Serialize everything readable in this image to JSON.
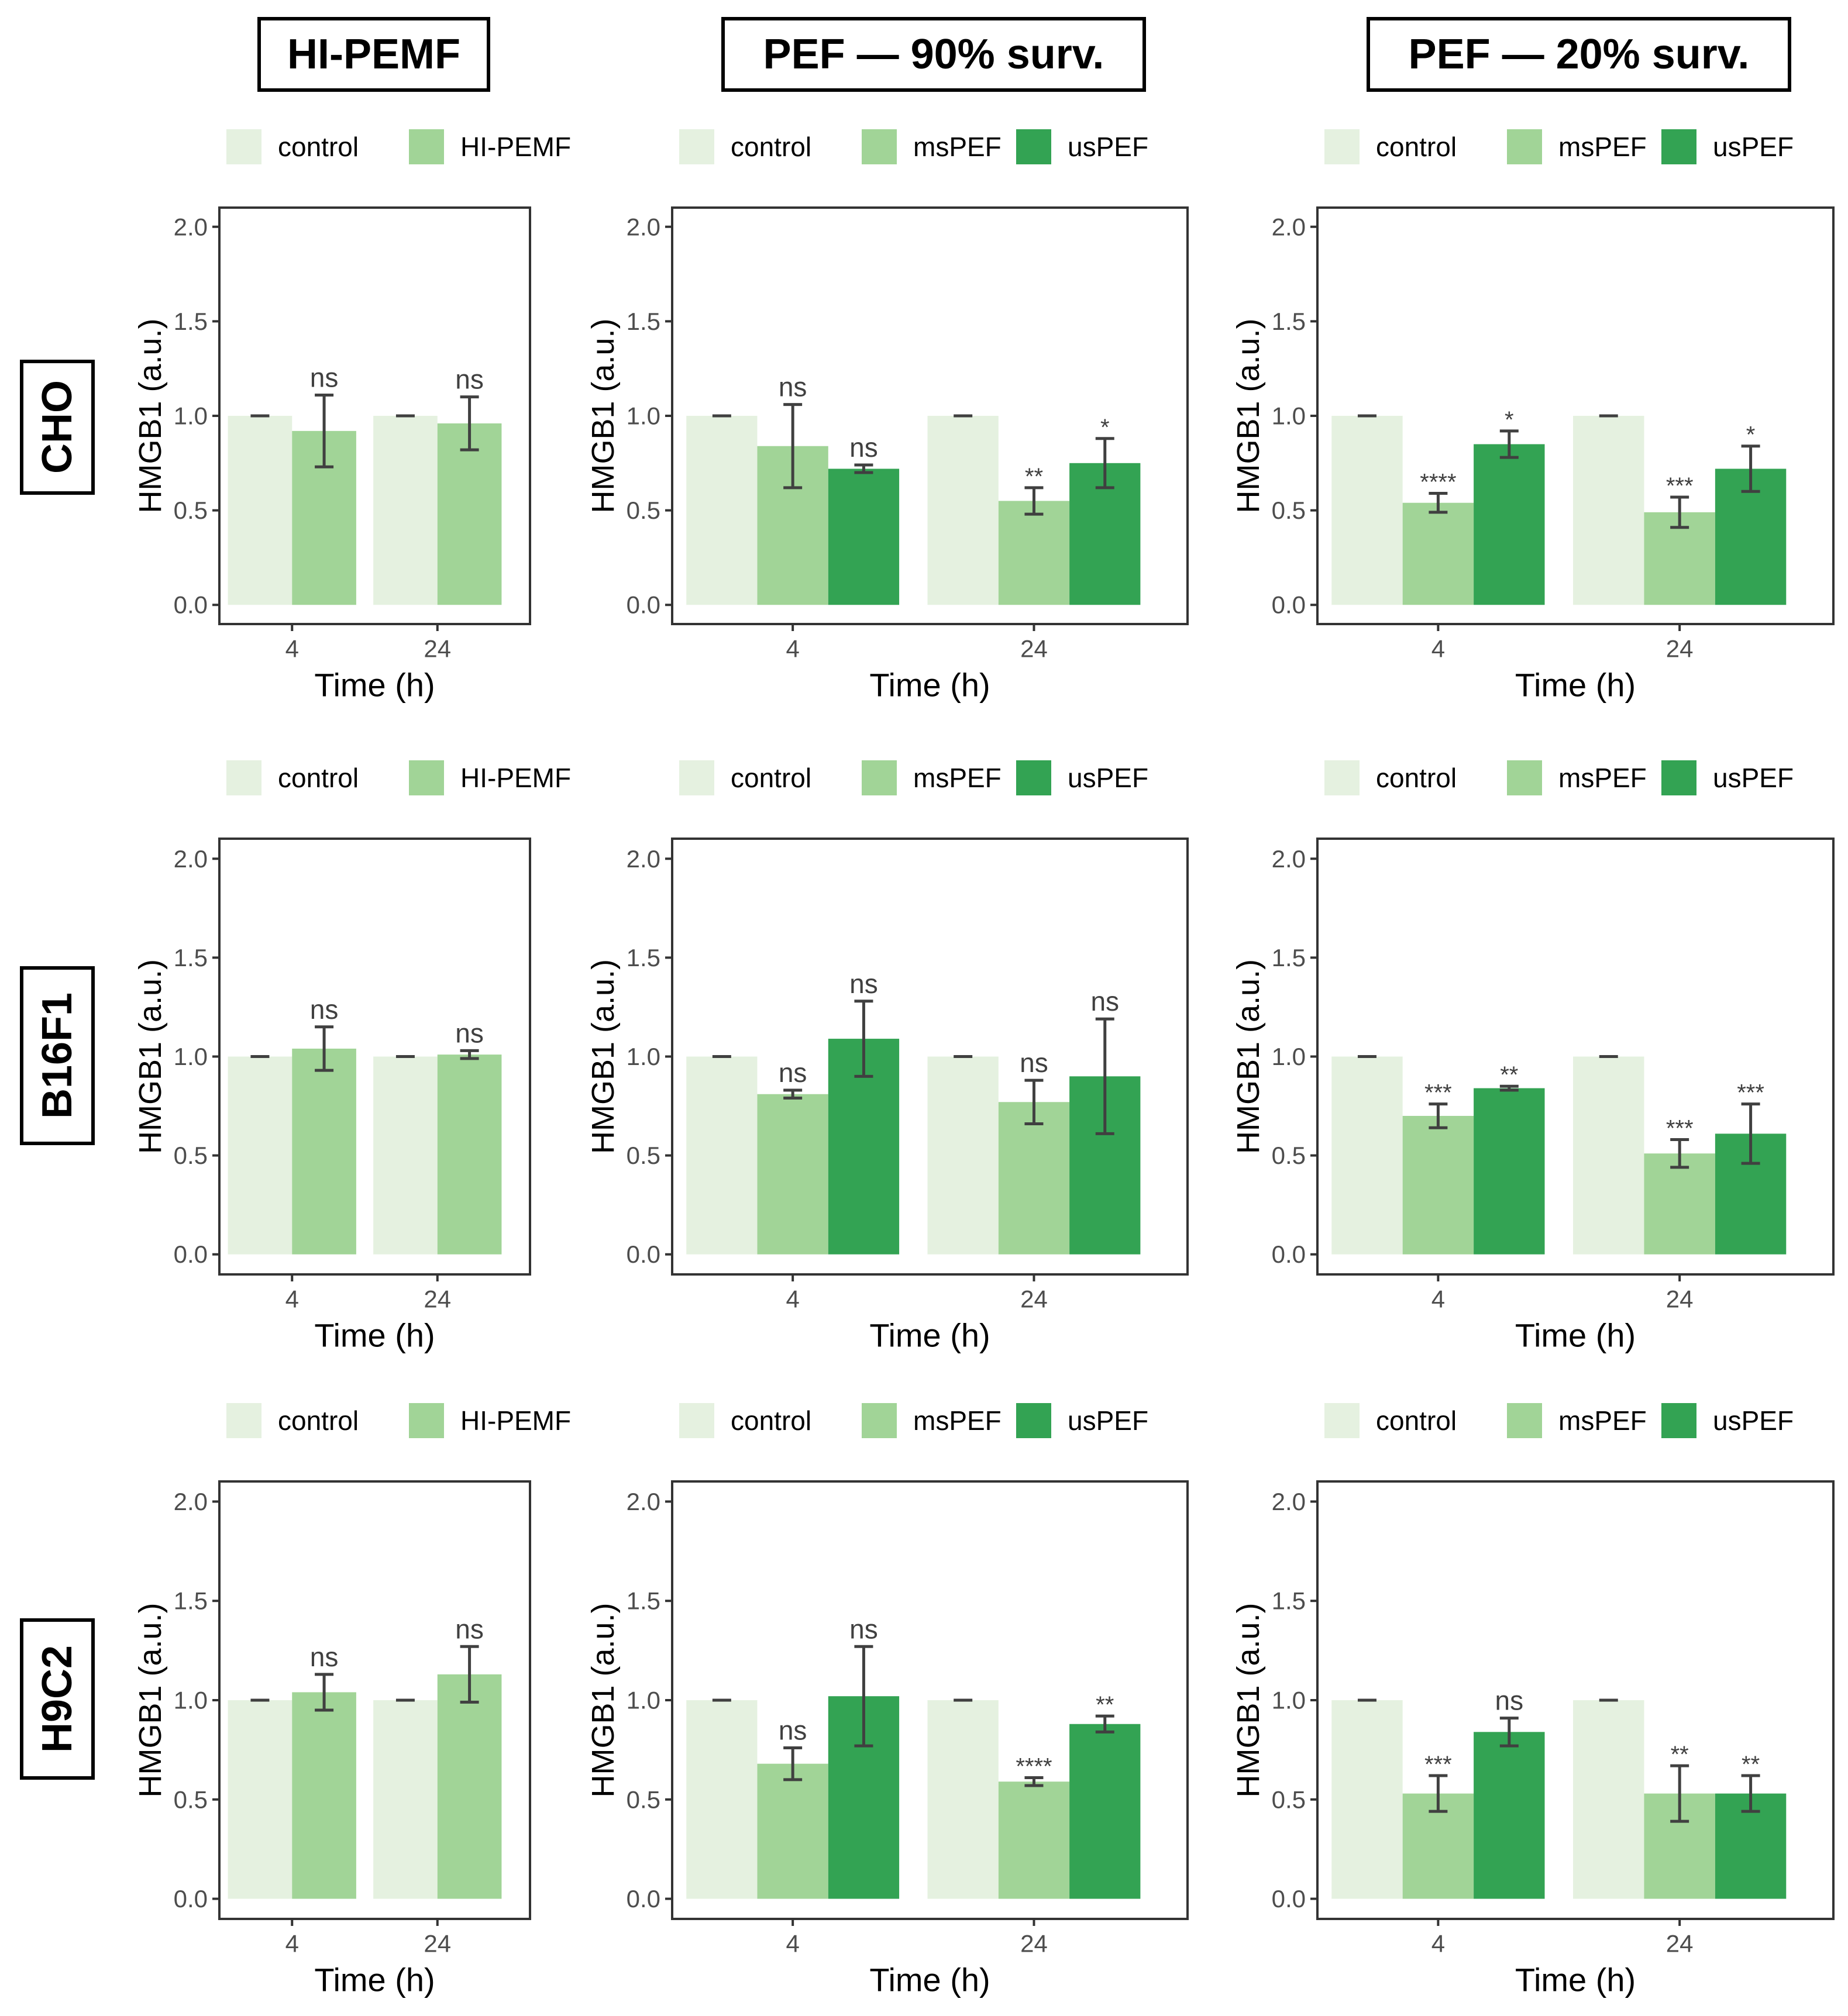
{
  "colors": {
    "control": "#e5f1e0",
    "msPEF": "#a1d497",
    "usPEF": "#33a353",
    "HI-PEMF": "#a1d497",
    "frame": "#333333",
    "tick_text": "#4d4d4d",
    "error_bar": "#404040"
  },
  "column_headers": [
    "HI-PEMF",
    "PEF — 90% surv.",
    "PEF — 20% surv."
  ],
  "row_headers": [
    "CHO",
    "B16F1",
    "H9C2"
  ],
  "chart_data": [
    {
      "id": "cho-hipemf",
      "row": 0,
      "col": 0,
      "type": "bar",
      "categories": [
        "4",
        "24"
      ],
      "series": [
        {
          "name": "control",
          "values": [
            1.0,
            1.0
          ],
          "errors": [
            0,
            0
          ],
          "labels": [
            "",
            ""
          ]
        },
        {
          "name": "HI-PEMF",
          "values": [
            0.92,
            0.96
          ],
          "errors": [
            0.19,
            0.14
          ],
          "labels": [
            "ns",
            "ns"
          ]
        }
      ],
      "xlabel": "Time (h)",
      "ylabel": "HMGB1 (a.u.)",
      "ylim": [
        0,
        2.0
      ],
      "yticks": [
        "0.0",
        "0.5",
        "1.0",
        "1.5",
        "2.0"
      ]
    },
    {
      "id": "cho-pef90",
      "row": 0,
      "col": 1,
      "type": "bar",
      "categories": [
        "4",
        "24"
      ],
      "series": [
        {
          "name": "control",
          "values": [
            1.0,
            1.0
          ],
          "errors": [
            0,
            0
          ],
          "labels": [
            "",
            ""
          ]
        },
        {
          "name": "msPEF",
          "values": [
            0.84,
            0.55
          ],
          "errors": [
            0.22,
            0.07
          ],
          "labels": [
            "ns",
            "**"
          ]
        },
        {
          "name": "usPEF",
          "values": [
            0.72,
            0.75
          ],
          "errors": [
            0.02,
            0.13
          ],
          "labels": [
            "ns",
            "*"
          ]
        }
      ],
      "xlabel": "Time (h)",
      "ylabel": "HMGB1 (a.u.)",
      "ylim": [
        0,
        2.0
      ],
      "yticks": [
        "0.0",
        "0.5",
        "1.0",
        "1.5",
        "2.0"
      ]
    },
    {
      "id": "cho-pef20",
      "row": 0,
      "col": 2,
      "type": "bar",
      "categories": [
        "4",
        "24"
      ],
      "series": [
        {
          "name": "control",
          "values": [
            1.0,
            1.0
          ],
          "errors": [
            0,
            0
          ],
          "labels": [
            "",
            ""
          ]
        },
        {
          "name": "msPEF",
          "values": [
            0.54,
            0.49
          ],
          "errors": [
            0.05,
            0.08
          ],
          "labels": [
            "****",
            "***"
          ]
        },
        {
          "name": "usPEF",
          "values": [
            0.85,
            0.72
          ],
          "errors": [
            0.07,
            0.12
          ],
          "labels": [
            "*",
            "*"
          ]
        }
      ],
      "xlabel": "Time (h)",
      "ylabel": "HMGB1 (a.u.)",
      "ylim": [
        0,
        2.0
      ],
      "yticks": [
        "0.0",
        "0.5",
        "1.0",
        "1.5",
        "2.0"
      ]
    },
    {
      "id": "b16f1-hipemf",
      "row": 1,
      "col": 0,
      "type": "bar",
      "categories": [
        "4",
        "24"
      ],
      "series": [
        {
          "name": "control",
          "values": [
            1.0,
            1.0
          ],
          "errors": [
            0,
            0
          ],
          "labels": [
            "",
            ""
          ]
        },
        {
          "name": "HI-PEMF",
          "values": [
            1.04,
            1.01
          ],
          "errors": [
            0.11,
            0.02
          ],
          "labels": [
            "ns",
            "ns"
          ]
        }
      ],
      "xlabel": "Time (h)",
      "ylabel": "HMGB1 (a.u.)",
      "ylim": [
        0,
        2.0
      ],
      "yticks": [
        "0.0",
        "0.5",
        "1.0",
        "1.5",
        "2.0"
      ]
    },
    {
      "id": "b16f1-pef90",
      "row": 1,
      "col": 1,
      "type": "bar",
      "categories": [
        "4",
        "24"
      ],
      "series": [
        {
          "name": "control",
          "values": [
            1.0,
            1.0
          ],
          "errors": [
            0,
            0
          ],
          "labels": [
            "",
            ""
          ]
        },
        {
          "name": "msPEF",
          "values": [
            0.81,
            0.77
          ],
          "errors": [
            0.02,
            0.11
          ],
          "labels": [
            "ns",
            "ns"
          ]
        },
        {
          "name": "usPEF",
          "values": [
            1.09,
            0.9
          ],
          "errors": [
            0.19,
            0.29
          ],
          "labels": [
            "ns",
            "ns"
          ]
        }
      ],
      "xlabel": "Time (h)",
      "ylabel": "HMGB1 (a.u.)",
      "ylim": [
        0,
        2.0
      ],
      "yticks": [
        "0.0",
        "0.5",
        "1.0",
        "1.5",
        "2.0"
      ]
    },
    {
      "id": "b16f1-pef20",
      "row": 1,
      "col": 2,
      "type": "bar",
      "categories": [
        "4",
        "24"
      ],
      "series": [
        {
          "name": "control",
          "values": [
            1.0,
            1.0
          ],
          "errors": [
            0,
            0
          ],
          "labels": [
            "",
            ""
          ]
        },
        {
          "name": "msPEF",
          "values": [
            0.7,
            0.51
          ],
          "errors": [
            0.06,
            0.07
          ],
          "labels": [
            "***",
            "***"
          ]
        },
        {
          "name": "usPEF",
          "values": [
            0.84,
            0.61
          ],
          "errors": [
            0.01,
            0.15
          ],
          "labels": [
            "**",
            "***"
          ]
        }
      ],
      "xlabel": "Time (h)",
      "ylabel": "HMGB1 (a.u.)",
      "ylim": [
        0,
        2.0
      ],
      "yticks": [
        "0.0",
        "0.5",
        "1.0",
        "1.5",
        "2.0"
      ]
    },
    {
      "id": "h9c2-hipemf",
      "row": 2,
      "col": 0,
      "type": "bar",
      "categories": [
        "4",
        "24"
      ],
      "series": [
        {
          "name": "control",
          "values": [
            1.0,
            1.0
          ],
          "errors": [
            0,
            0
          ],
          "labels": [
            "",
            ""
          ]
        },
        {
          "name": "HI-PEMF",
          "values": [
            1.04,
            1.13
          ],
          "errors": [
            0.09,
            0.14
          ],
          "labels": [
            "ns",
            "ns"
          ]
        }
      ],
      "xlabel": "Time (h)",
      "ylabel": "HMGB1 (a.u.)",
      "ylim": [
        0,
        2.0
      ],
      "yticks": [
        "0.0",
        "0.5",
        "1.0",
        "1.5",
        "2.0"
      ]
    },
    {
      "id": "h9c2-pef90",
      "row": 2,
      "col": 1,
      "type": "bar",
      "categories": [
        "4",
        "24"
      ],
      "series": [
        {
          "name": "control",
          "values": [
            1.0,
            1.0
          ],
          "errors": [
            0,
            0
          ],
          "labels": [
            "",
            ""
          ]
        },
        {
          "name": "msPEF",
          "values": [
            0.68,
            0.59
          ],
          "errors": [
            0.08,
            0.02
          ],
          "labels": [
            "ns",
            "****"
          ]
        },
        {
          "name": "usPEF",
          "values": [
            1.02,
            0.88
          ],
          "errors": [
            0.25,
            0.04
          ],
          "labels": [
            "ns",
            "**"
          ]
        }
      ],
      "xlabel": "Time (h)",
      "ylabel": "HMGB1 (a.u.)",
      "ylim": [
        0,
        2.0
      ],
      "yticks": [
        "0.0",
        "0.5",
        "1.0",
        "1.5",
        "2.0"
      ]
    },
    {
      "id": "h9c2-pef20",
      "row": 2,
      "col": 2,
      "type": "bar",
      "categories": [
        "4",
        "24"
      ],
      "series": [
        {
          "name": "control",
          "values": [
            1.0,
            1.0
          ],
          "errors": [
            0,
            0
          ],
          "labels": [
            "",
            ""
          ]
        },
        {
          "name": "msPEF",
          "values": [
            0.53,
            0.53
          ],
          "errors": [
            0.09,
            0.14
          ],
          "labels": [
            "***",
            "**"
          ]
        },
        {
          "name": "usPEF",
          "values": [
            0.84,
            0.53
          ],
          "errors": [
            0.07,
            0.09
          ],
          "labels": [
            "ns",
            "**"
          ]
        }
      ],
      "xlabel": "Time (h)",
      "ylabel": "HMGB1 (a.u.)",
      "ylim": [
        0,
        2.0
      ],
      "yticks": [
        "0.0",
        "0.5",
        "1.0",
        "1.5",
        "2.0"
      ]
    }
  ]
}
